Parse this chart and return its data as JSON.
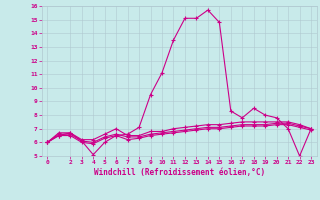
{
  "xlabel": "Windchill (Refroidissement éolien,°C)",
  "bg_color": "#c8eaea",
  "grid_color": "#b0c8d0",
  "line_color": "#cc0088",
  "xlim": [
    -0.5,
    23.5
  ],
  "ylim": [
    5,
    16
  ],
  "yticks": [
    5,
    6,
    7,
    8,
    9,
    10,
    11,
    12,
    13,
    14,
    15,
    16
  ],
  "xticks": [
    0,
    2,
    3,
    4,
    5,
    6,
    7,
    8,
    9,
    10,
    11,
    12,
    13,
    14,
    15,
    16,
    17,
    18,
    19,
    20,
    21,
    22,
    23
  ],
  "line1_x": [
    0,
    1,
    2,
    3,
    4,
    5,
    6,
    7,
    8,
    9,
    10,
    11,
    12,
    13,
    14,
    15,
    16,
    17,
    18,
    19,
    20,
    21,
    22,
    23
  ],
  "line1_y": [
    6.0,
    6.5,
    6.7,
    6.1,
    5.1,
    6.0,
    6.5,
    6.6,
    7.1,
    9.5,
    11.1,
    13.5,
    15.1,
    15.1,
    15.7,
    14.8,
    8.3,
    7.8,
    8.5,
    8.0,
    7.8,
    7.0,
    5.0,
    7.0
  ],
  "line2_x": [
    0,
    1,
    2,
    3,
    4,
    5,
    6,
    7,
    8,
    9,
    10,
    11,
    12,
    13,
    14,
    15,
    16,
    17,
    18,
    19,
    20,
    21,
    22,
    23
  ],
  "line2_y": [
    6.0,
    6.7,
    6.7,
    6.2,
    6.2,
    6.6,
    7.0,
    6.5,
    6.5,
    6.8,
    6.8,
    7.0,
    7.1,
    7.2,
    7.3,
    7.3,
    7.4,
    7.5,
    7.5,
    7.5,
    7.5,
    7.5,
    7.3,
    7.0
  ],
  "line3_x": [
    0,
    1,
    2,
    3,
    4,
    5,
    6,
    7,
    8,
    9,
    10,
    11,
    12,
    13,
    14,
    15,
    16,
    17,
    18,
    19,
    20,
    21,
    22,
    23
  ],
  "line3_y": [
    6.0,
    6.6,
    6.6,
    6.1,
    6.0,
    6.4,
    6.6,
    6.4,
    6.4,
    6.6,
    6.7,
    6.8,
    6.9,
    7.0,
    7.1,
    7.1,
    7.2,
    7.3,
    7.3,
    7.3,
    7.4,
    7.4,
    7.2,
    7.0
  ],
  "line4_x": [
    0,
    1,
    2,
    3,
    4,
    5,
    6,
    7,
    8,
    9,
    10,
    11,
    12,
    13,
    14,
    15,
    16,
    17,
    18,
    19,
    20,
    21,
    22,
    23
  ],
  "line4_y": [
    6.0,
    6.5,
    6.5,
    6.0,
    5.9,
    6.3,
    6.5,
    6.2,
    6.3,
    6.5,
    6.6,
    6.7,
    6.8,
    6.9,
    7.0,
    7.0,
    7.1,
    7.2,
    7.2,
    7.2,
    7.3,
    7.3,
    7.1,
    6.9
  ]
}
